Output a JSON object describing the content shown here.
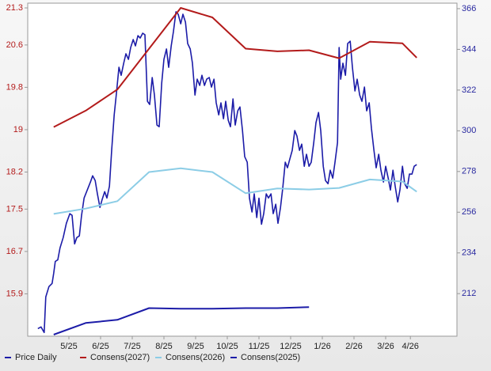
{
  "chart_data": {
    "type": "line",
    "xlim": [
      -1.3,
      12.25
    ],
    "xticks": [
      {
        "value": 0,
        "label": "5/25"
      },
      {
        "value": 1,
        "label": "6/25"
      },
      {
        "value": 2,
        "label": "7/25"
      },
      {
        "value": 3,
        "label": "8/25"
      },
      {
        "value": 4,
        "label": "9/25"
      },
      {
        "value": 5,
        "label": "10/25"
      },
      {
        "value": 6,
        "label": "11/25"
      },
      {
        "value": 7,
        "label": "12/25"
      },
      {
        "value": 8,
        "label": "1/26"
      },
      {
        "value": 9,
        "label": "2/26"
      },
      {
        "value": 10,
        "label": "3/26"
      },
      {
        "value": 10.78,
        "label": "4/26"
      }
    ],
    "ylim": [
      15.1,
      21.3
    ],
    "yticks": [
      15.9,
      16.7,
      17.5,
      18.2,
      19.0,
      {
        "value": 19.8,
        "label": "19.8"
      },
      20.6,
      21.3
    ],
    "y2lim": [
      189,
      366.4
    ],
    "y2ticks": [
      212,
      234,
      256,
      278,
      300,
      322,
      344,
      366
    ],
    "legend": "bottom",
    "series": [
      {
        "name": "Price Daily",
        "color": "#1c1ca8",
        "axis": "y2",
        "x": [
          -0.98,
          -0.88,
          -0.78,
          -0.73,
          -0.63,
          -0.53,
          -0.48,
          -0.43,
          -0.35,
          -0.28,
          -0.18,
          -0.08,
          0.03,
          0.1,
          0.18,
          0.25,
          0.33,
          0.4,
          0.48,
          0.58,
          0.68,
          0.75,
          0.83,
          0.9,
          0.98,
          1.05,
          1.13,
          1.2,
          1.28,
          1.35,
          1.43,
          1.5,
          1.58,
          1.65,
          1.73,
          1.8,
          1.88,
          1.95,
          2.03,
          2.1,
          2.18,
          2.25,
          2.33,
          2.4,
          2.48,
          2.55,
          2.63,
          2.7,
          2.78,
          2.85,
          2.93,
          3.0,
          3.08,
          3.15,
          3.23,
          3.3,
          3.38,
          3.45,
          3.53,
          3.6,
          3.68,
          3.75,
          3.83,
          3.9,
          3.98,
          4.05,
          4.13,
          4.2,
          4.28,
          4.35,
          4.43,
          4.5,
          4.58,
          4.65,
          4.73,
          4.8,
          4.88,
          4.95,
          5.03,
          5.1,
          5.18,
          5.25,
          5.33,
          5.4,
          5.48,
          5.55,
          5.63,
          5.7,
          5.78,
          5.85,
          5.93,
          6.0,
          6.08,
          6.15,
          6.23,
          6.3,
          6.38,
          6.45,
          6.53,
          6.6,
          6.68,
          6.75,
          6.83,
          6.9,
          6.98,
          7.05,
          7.13,
          7.2,
          7.28,
          7.35,
          7.43,
          7.5,
          7.58,
          7.65,
          7.73,
          7.8,
          7.88,
          7.95,
          8.03,
          8.1,
          8.18,
          8.25,
          8.33,
          8.4,
          8.48,
          8.53,
          8.58,
          8.65,
          8.73,
          8.8,
          8.88,
          8.95,
          9.03,
          9.1,
          9.18,
          9.25,
          9.33,
          9.4,
          9.48,
          9.55,
          9.63,
          9.7,
          9.78,
          9.85,
          9.93,
          10.0,
          10.08,
          10.15,
          10.23,
          10.3,
          10.38,
          10.45,
          10.53,
          10.6,
          10.68,
          10.75,
          10.83,
          10.9,
          10.98
        ],
        "values": [
          193.1,
          194.0,
          191.0,
          210.2,
          215.8,
          217.5,
          223.0,
          229.4,
          230.3,
          236.7,
          242.3,
          250.0,
          255.2,
          254.3,
          238.9,
          242.3,
          243.2,
          254.3,
          263.7,
          268.0,
          272.3,
          275.7,
          273.1,
          265.9,
          258.6,
          262.9,
          267.1,
          263.7,
          270.1,
          289.4,
          308.6,
          320.2,
          334.3,
          330.0,
          336.5,
          341.6,
          338.6,
          345.0,
          349.3,
          345.9,
          351.4,
          350.1,
          352.7,
          351.9,
          315.9,
          314.2,
          328.8,
          319.3,
          303.1,
          302.2,
          325.8,
          338.6,
          344.2,
          334.3,
          345.9,
          353.6,
          364.3,
          363.0,
          357.8,
          363.0,
          358.7,
          347.1,
          344.2,
          336.5,
          319.3,
          327.9,
          324.5,
          330.0,
          324.5,
          327.9,
          328.8,
          323.6,
          327.9,
          315.1,
          308.6,
          315.1,
          306.5,
          315.9,
          305.7,
          302.2,
          317.2,
          303.1,
          310.8,
          312.9,
          300.1,
          286.0,
          283.0,
          263.7,
          256.1,
          265.9,
          253.1,
          263.6,
          249.5,
          255.2,
          265.9,
          263.7,
          265.9,
          255.2,
          260.3,
          250.0,
          258.6,
          268.9,
          283.0,
          280.0,
          285.1,
          289.4,
          300.1,
          297.1,
          289.4,
          292.8,
          280.8,
          287.3,
          280.8,
          283.0,
          293.7,
          304.4,
          309.9,
          300.1,
          280.8,
          273.1,
          271.4,
          278.7,
          274.4,
          283.0,
          293.7,
          345.0,
          327.9,
          336.5,
          330.0,
          347.1,
          348.4,
          334.3,
          321.5,
          327.9,
          319.3,
          315.9,
          323.6,
          310.8,
          315.1,
          301.4,
          289.4,
          280.0,
          287.3,
          278.7,
          272.3,
          280.8,
          274.4,
          268.0,
          278.7,
          270.1,
          261.6,
          268.0,
          280.8,
          271.4,
          268.9,
          276.6,
          276.6,
          280.8,
          281.7
        ]
      },
      {
        "name": "Consens(2027)",
        "color": "#b31b1b",
        "x": [
          -0.48,
          0.53,
          1.53,
          3.53,
          4.53,
          5.58,
          6.58,
          7.58,
          8.53,
          9.5,
          10.53,
          10.98
        ],
        "values": [
          19.05,
          19.36,
          19.76,
          21.3,
          21.12,
          20.53,
          20.48,
          20.5,
          20.35,
          20.66,
          20.63,
          20.36
        ]
      },
      {
        "name": "Consens(2026)",
        "color": "#8ccde6",
        "x": [
          -0.48,
          0.53,
          1.53,
          2.53,
          3.53,
          4.53,
          5.58,
          6.58,
          7.58,
          8.53,
          9.5,
          10.53,
          10.98
        ],
        "values": [
          17.41,
          17.51,
          17.65,
          18.2,
          18.27,
          18.2,
          17.8,
          17.89,
          17.87,
          17.9,
          18.06,
          18.02,
          17.83
        ]
      },
      {
        "name": "Consens(2025)",
        "color": "#1c1ca8",
        "x": [
          -0.48,
          0.53,
          1.53,
          2.53,
          3.53,
          4.53,
          5.58,
          6.58,
          7.58
        ],
        "values": [
          15.13,
          15.35,
          15.41,
          15.63,
          15.62,
          15.62,
          15.63,
          15.63,
          15.65
        ]
      }
    ]
  }
}
